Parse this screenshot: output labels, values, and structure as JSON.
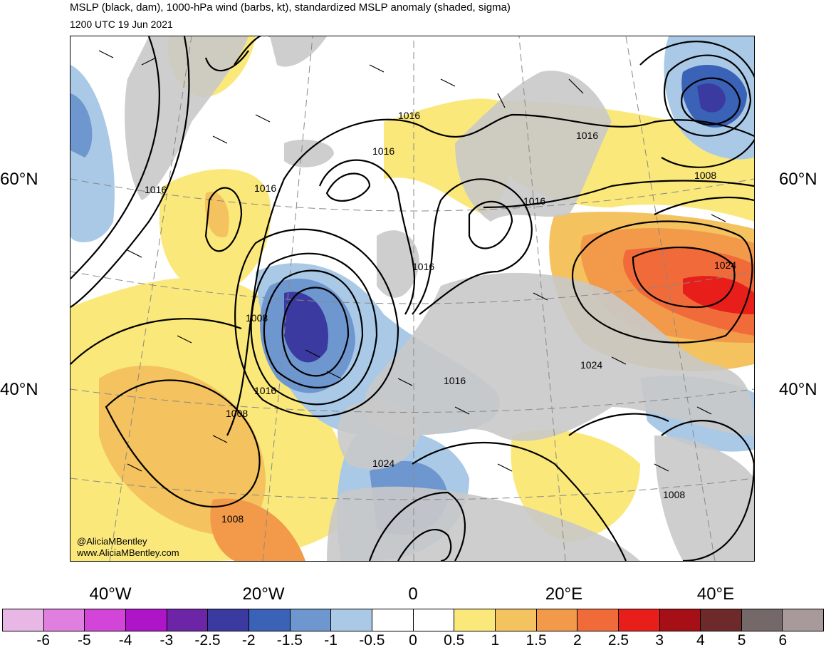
{
  "title": "MSLP (black, dam), 1000-hPa wind (barbs, kt), standardized MSLP anomaly (shaded, sigma)",
  "valid_time": "1200 UTC 19 Jun 2021",
  "lat_labels": [
    "60°N",
    "40°N"
  ],
  "lon_labels": [
    "40°W",
    "20°W",
    "0",
    "20°E",
    "40°E"
  ],
  "credits": [
    "@AliciaMBentley",
    "www.AliciaMBentley.com"
  ],
  "contour_labels": [
    "1016",
    "1016",
    "1016",
    "1016",
    "1016",
    "1016",
    "1016",
    "1016",
    "1016",
    "1024",
    "1024",
    "1024",
    "1008",
    "1008",
    "1008"
  ],
  "colorbar": {
    "ticks": [
      "-6",
      "-5",
      "-4",
      "-3",
      "-2.5",
      "-2",
      "-1.5",
      "-1",
      "-0.5",
      "0",
      "0.5",
      "1",
      "1.5",
      "2",
      "2.5",
      "3",
      "4",
      "5",
      "6"
    ],
    "colors": [
      "#e8b7e6",
      "#e07fe0",
      "#d245d8",
      "#ae15c8",
      "#6d25a8",
      "#3b3aa0",
      "#3a62b6",
      "#6f97cf",
      "#a9c9e6",
      "#ffffff",
      "#ffffff",
      "#fbe87a",
      "#f4c25e",
      "#f29a4a",
      "#f06a3a",
      "#e81e1a",
      "#a50f15",
      "#6e2a2a",
      "#756868",
      "#a89a9a"
    ]
  },
  "colors": {
    "land": "#c9c9c9",
    "anomaly_neg": "#6f97cf",
    "anomaly_pos": "#f4c25e",
    "isobar": "#000000"
  }
}
